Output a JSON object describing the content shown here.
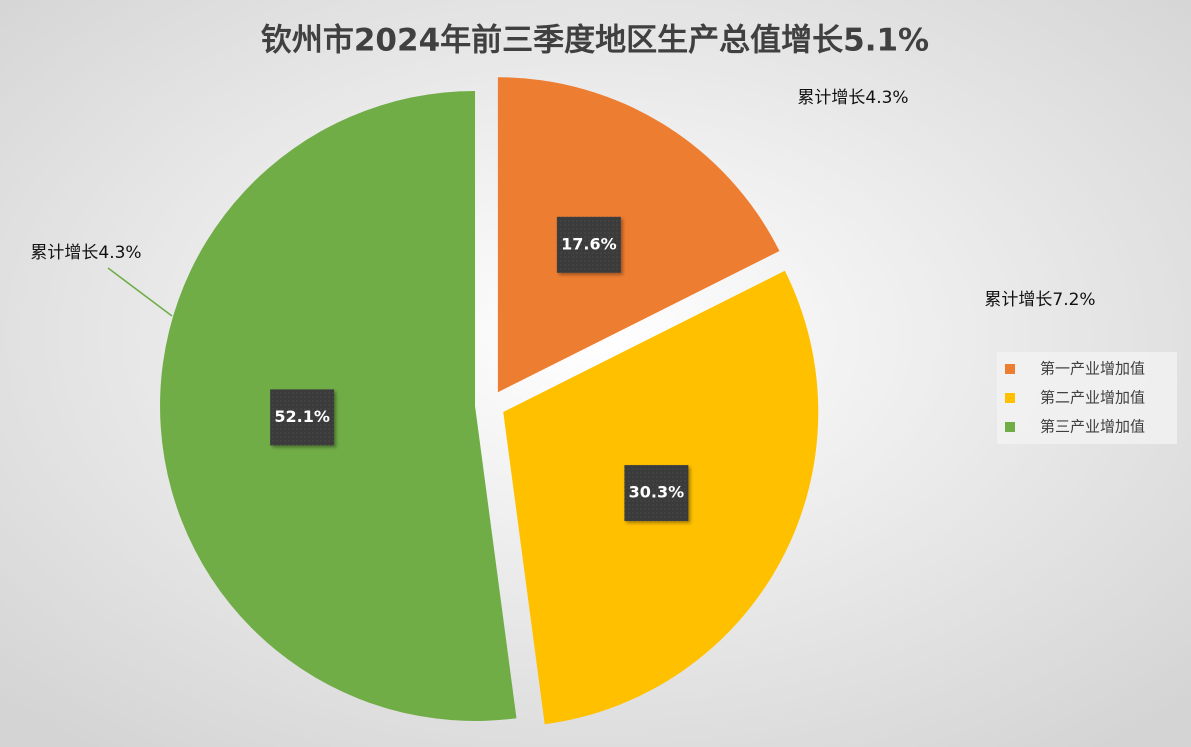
{
  "chart_data": {
    "type": "pie",
    "title": "钦州市2024年前三季度地区生产总值增长5.1%",
    "categories": [
      "第一产业增加值",
      "第二产业增加值",
      "第三产业增加值"
    ],
    "values": [
      17.6,
      30.3,
      52.1
    ],
    "value_labels": [
      "17.6%",
      "30.3%",
      "52.1%"
    ],
    "colors": [
      "#ed7d31",
      "#ffc000",
      "#70ad47"
    ],
    "annotations": [
      "累计增长4.3%",
      "累计增长7.2%",
      "累计增长4.3%"
    ],
    "legend": "right"
  }
}
